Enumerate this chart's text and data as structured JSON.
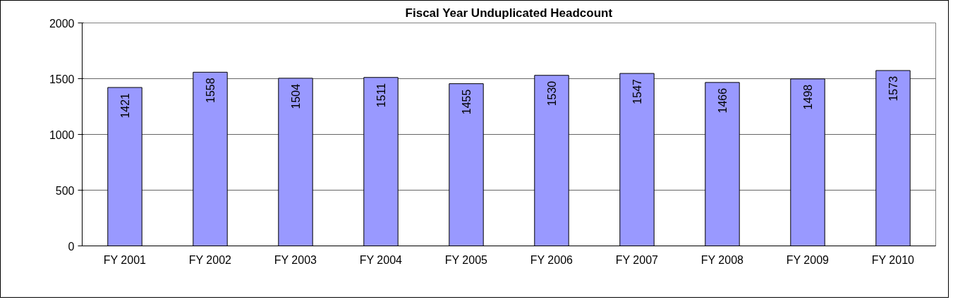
{
  "chart_data": {
    "type": "bar",
    "title": "Fiscal Year Unduplicated Headcount",
    "categories": [
      "FY 2001",
      "FY 2002",
      "FY 2003",
      "FY 2004",
      "FY 2005",
      "FY 2006",
      "FY 2007",
      "FY 2008",
      "FY 2009",
      "FY 2010"
    ],
    "values": [
      1421,
      1558,
      1504,
      1511,
      1455,
      1530,
      1547,
      1466,
      1498,
      1573
    ],
    "color": "#9999ff",
    "ylim": [
      0,
      2000
    ],
    "yticks": [
      0,
      500,
      1000,
      1500,
      2000
    ],
    "grid": "y",
    "data_labels": true
  }
}
